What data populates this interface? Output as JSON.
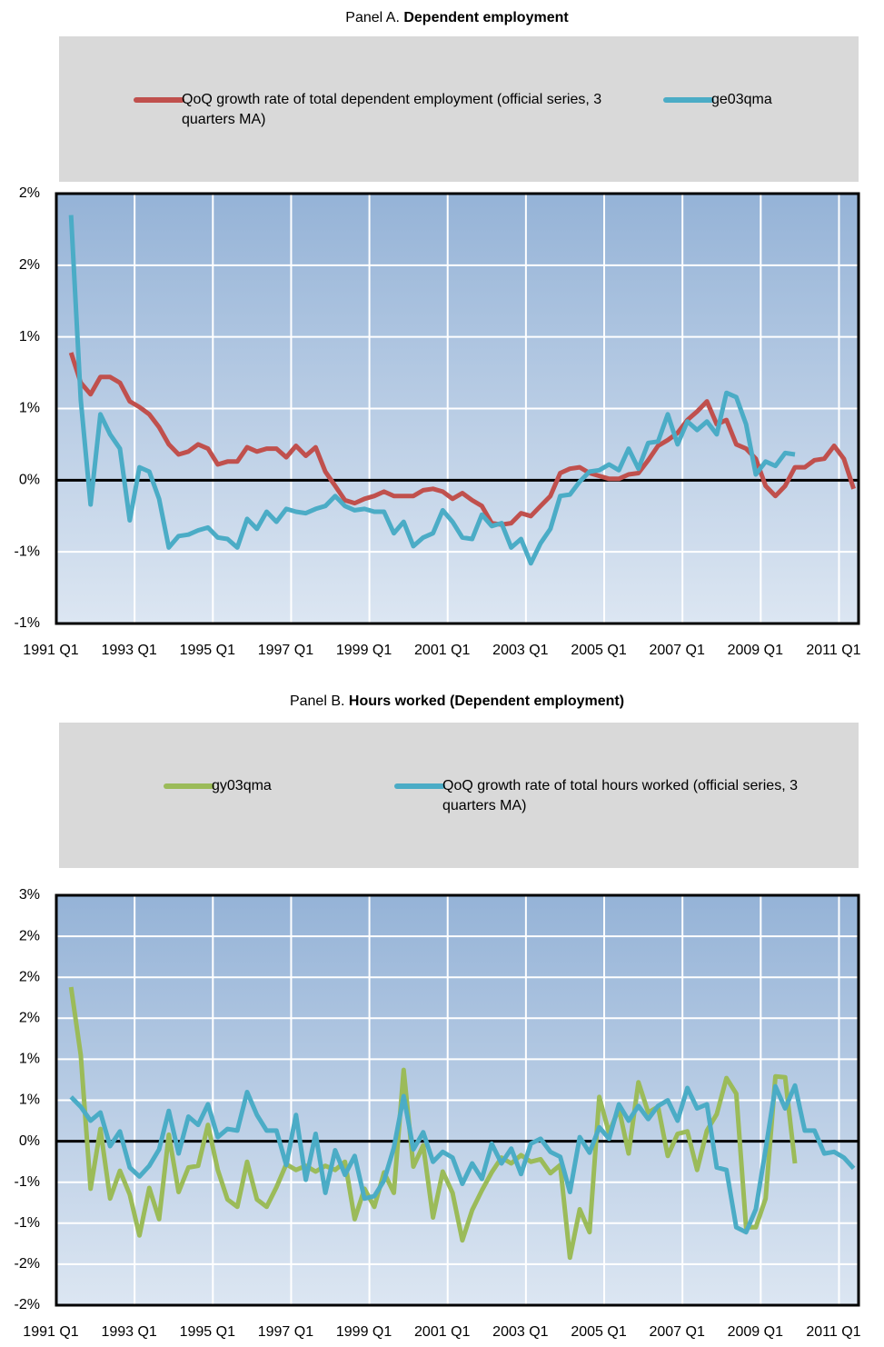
{
  "chart_data": [
    {
      "type": "line",
      "panel": "Panel A.",
      "title": "Dependent employment",
      "categories": [
        "1991 Q1",
        null,
        null,
        null,
        null,
        null,
        null,
        null,
        "1993 Q1",
        null,
        null,
        null,
        null,
        null,
        null,
        null,
        "1995 Q1",
        null,
        null,
        null,
        null,
        null,
        null,
        null,
        "1997 Q1",
        null,
        null,
        null,
        null,
        null,
        null,
        null,
        "1999 Q1",
        null,
        null,
        null,
        null,
        null,
        null,
        null,
        "2001 Q1",
        null,
        null,
        null,
        null,
        null,
        null,
        null,
        "2003 Q1",
        null,
        null,
        null,
        null,
        null,
        null,
        null,
        "2005 Q1",
        null,
        null,
        null,
        null,
        null,
        null,
        null,
        "2007 Q1",
        null,
        null,
        null,
        null,
        null,
        null,
        null,
        "2009 Q1",
        null,
        null,
        null,
        null,
        null,
        null,
        null,
        "2011 Q1",
        null
      ],
      "series": [
        {
          "name": "QoQ growth rate of total dependent employment (official series, 3 quarters MA)",
          "color": "#c0504d",
          "values": [
            null,
            0.89,
            0.68,
            0.6,
            0.72,
            0.72,
            0.68,
            0.55,
            0.51,
            0.46,
            0.37,
            0.25,
            0.18,
            0.2,
            0.25,
            0.22,
            0.11,
            0.13,
            0.13,
            0.23,
            0.2,
            0.22,
            0.22,
            0.16,
            0.24,
            0.17,
            0.23,
            0.06,
            -0.04,
            -0.14,
            -0.16,
            -0.13,
            -0.11,
            -0.08,
            -0.11,
            -0.11,
            -0.11,
            -0.07,
            -0.06,
            -0.08,
            -0.13,
            -0.09,
            -0.14,
            -0.18,
            -0.3,
            -0.31,
            -0.3,
            -0.23,
            -0.25,
            -0.18,
            -0.11,
            0.05,
            0.08,
            0.09,
            0.05,
            0.03,
            0.01,
            0.01,
            0.04,
            0.05,
            0.14,
            0.24,
            0.28,
            0.33,
            0.42,
            0.48,
            0.55,
            0.39,
            0.42,
            0.25,
            0.22,
            0.15,
            -0.04,
            -0.11,
            -0.04,
            0.09,
            0.09,
            0.14,
            0.15,
            0.24,
            0.15,
            -0.06
          ]
        },
        {
          "name": "ge03qma",
          "color": "#4bacc6",
          "values": [
            null,
            1.85,
            0.56,
            -0.17,
            0.46,
            0.32,
            0.22,
            -0.28,
            0.09,
            0.06,
            -0.13,
            -0.47,
            -0.39,
            -0.38,
            -0.35,
            -0.33,
            -0.4,
            -0.41,
            -0.47,
            -0.27,
            -0.34,
            -0.22,
            -0.29,
            -0.2,
            -0.22,
            -0.23,
            -0.2,
            -0.18,
            -0.11,
            -0.18,
            -0.21,
            -0.2,
            -0.22,
            -0.22,
            -0.37,
            -0.29,
            -0.46,
            -0.4,
            -0.37,
            -0.21,
            -0.29,
            -0.4,
            -0.41,
            -0.24,
            -0.32,
            -0.3,
            -0.47,
            -0.41,
            -0.58,
            -0.44,
            -0.34,
            -0.11,
            -0.1,
            -0.01,
            0.06,
            0.07,
            0.11,
            0.07,
            0.22,
            0.08,
            0.26,
            0.27,
            0.46,
            0.25,
            0.41,
            0.35,
            0.41,
            0.32,
            0.61,
            0.58,
            0.39,
            0.04,
            0.13,
            0.1,
            0.19,
            0.18,
            null,
            null,
            null,
            null,
            null,
            null
          ]
        }
      ],
      "ylim": [
        -1,
        2
      ],
      "yticks": [
        {
          "value": -1,
          "label": "-1%"
        },
        {
          "value": -0.5,
          "label": "-1%"
        },
        {
          "value": 0,
          "label": "0%"
        },
        {
          "value": 0.5,
          "label": "1%"
        },
        {
          "value": 1,
          "label": "1%"
        },
        {
          "value": 1.5,
          "label": "2%"
        },
        {
          "value": 2,
          "label": "2%"
        }
      ],
      "grid": true,
      "legend": "top"
    },
    {
      "type": "line",
      "panel": "Panel B.",
      "title": "Hours worked (Dependent employment)",
      "categories": [
        "1991 Q1",
        null,
        null,
        null,
        null,
        null,
        null,
        null,
        "1993 Q1",
        null,
        null,
        null,
        null,
        null,
        null,
        null,
        "1995 Q1",
        null,
        null,
        null,
        null,
        null,
        null,
        null,
        "1997 Q1",
        null,
        null,
        null,
        null,
        null,
        null,
        null,
        "1999 Q1",
        null,
        null,
        null,
        null,
        null,
        null,
        null,
        "2001 Q1",
        null,
        null,
        null,
        null,
        null,
        null,
        null,
        "2003 Q1",
        null,
        null,
        null,
        null,
        null,
        null,
        null,
        "2005 Q1",
        null,
        null,
        null,
        null,
        null,
        null,
        null,
        "2007 Q1",
        null,
        null,
        null,
        null,
        null,
        null,
        null,
        "2009 Q1",
        null,
        null,
        null,
        null,
        null,
        null,
        null,
        "2011 Q1",
        null
      ],
      "series": [
        {
          "name": "gy03qma",
          "color": "#9bbb59",
          "values": [
            null,
            1.88,
            1.05,
            -0.58,
            0.15,
            -0.7,
            -0.36,
            -0.65,
            -1.15,
            -0.57,
            -0.95,
            0.08,
            -0.62,
            -0.32,
            -0.3,
            0.2,
            -0.35,
            -0.71,
            -0.8,
            -0.25,
            -0.71,
            -0.8,
            -0.56,
            -0.28,
            -0.35,
            -0.3,
            -0.37,
            -0.3,
            -0.35,
            -0.25,
            -0.95,
            -0.58,
            -0.8,
            -0.38,
            -0.63,
            0.87,
            -0.31,
            -0.05,
            -0.93,
            -0.37,
            -0.63,
            -1.21,
            -0.84,
            -0.6,
            -0.38,
            -0.2,
            -0.27,
            -0.17,
            -0.25,
            -0.22,
            -0.39,
            -0.29,
            -1.42,
            -0.83,
            -1.11,
            0.54,
            0.1,
            0.4,
            -0.15,
            0.72,
            0.35,
            0.42,
            -0.18,
            0.09,
            0.12,
            -0.35,
            0.13,
            0.33,
            0.77,
            0.58,
            -1.05,
            -1.05,
            -0.7,
            0.79,
            0.78,
            -0.27,
            null,
            null,
            null,
            null,
            null,
            null
          ]
        },
        {
          "name": "QoQ growth rate of total hours worked (official series, 3 quarters MA)",
          "color": "#4bacc6",
          "values": [
            null,
            0.54,
            0.42,
            0.25,
            0.35,
            -0.06,
            0.12,
            -0.32,
            -0.43,
            -0.3,
            -0.1,
            0.37,
            -0.15,
            0.3,
            0.2,
            0.45,
            0.05,
            0.15,
            0.13,
            0.6,
            0.32,
            0.13,
            0.13,
            -0.29,
            0.32,
            -0.47,
            0.09,
            -0.63,
            -0.11,
            -0.41,
            -0.18,
            -0.7,
            -0.67,
            -0.48,
            -0.08,
            0.55,
            -0.1,
            0.11,
            -0.25,
            -0.13,
            -0.2,
            -0.52,
            -0.27,
            -0.46,
            -0.03,
            -0.27,
            -0.09,
            -0.4,
            -0.03,
            0.03,
            -0.13,
            -0.19,
            -0.62,
            0.05,
            -0.14,
            0.17,
            0.03,
            0.45,
            0.25,
            0.43,
            0.27,
            0.43,
            0.5,
            0.25,
            0.65,
            0.4,
            0.45,
            -0.32,
            -0.35,
            -1.05,
            -1.11,
            -0.83,
            -0.1,
            0.67,
            0.4,
            0.68,
            0.13,
            0.13,
            -0.15,
            -0.13,
            -0.2,
            -0.33
          ]
        }
      ],
      "ylim": [
        -2,
        3
      ],
      "yticks": [
        {
          "value": -2,
          "label": "-2%"
        },
        {
          "value": -1.5,
          "label": "-2%"
        },
        {
          "value": -1,
          "label": "-1%"
        },
        {
          "value": -0.5,
          "label": "-1%"
        },
        {
          "value": 0,
          "label": "0%"
        },
        {
          "value": 0.5,
          "label": "1%"
        },
        {
          "value": 1,
          "label": "1%"
        },
        {
          "value": 1.5,
          "label": "2%"
        },
        {
          "value": 2,
          "label": "2%"
        },
        {
          "value": 2.5,
          "label": "2%"
        },
        {
          "value": 3,
          "label": "3%"
        }
      ],
      "grid": true,
      "legend": "top"
    }
  ]
}
